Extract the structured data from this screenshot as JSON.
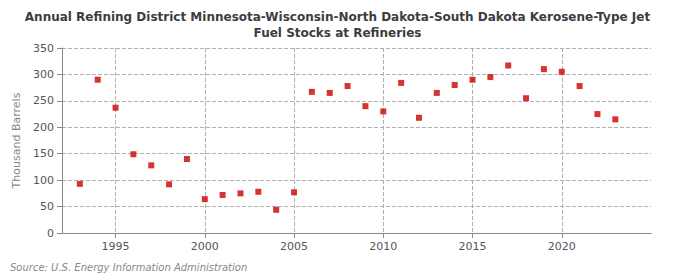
{
  "chart_data": {
    "type": "scatter",
    "title": "Annual Refining District Minnesota-Wisconsin-North Dakota-South Dakota Kerosene-Type Jet\nFuel Stocks at Refineries",
    "ylabel": "Thousand Barrels",
    "source": "Source: U.S. Energy Information Administration",
    "x": [
      1993,
      1994,
      1995,
      1996,
      1997,
      1998,
      1999,
      2000,
      2001,
      2002,
      2003,
      2004,
      2005,
      2006,
      2007,
      2008,
      2009,
      2010,
      2011,
      2012,
      2013,
      2014,
      2015,
      2016,
      2017,
      2018,
      2019,
      2020,
      2021,
      2022,
      2023
    ],
    "values": [
      93,
      290,
      237,
      149,
      128,
      92,
      140,
      64,
      72,
      75,
      78,
      44,
      77,
      267,
      265,
      278,
      240,
      230,
      284,
      218,
      265,
      280,
      290,
      295,
      317,
      255,
      310,
      305,
      278,
      225,
      215
    ],
    "color": "#cc0000",
    "marker": "square",
    "xlim": [
      1992,
      2025
    ],
    "xticks": [
      1995,
      2000,
      2005,
      2010,
      2015,
      2020
    ],
    "ylim": [
      0,
      350
    ],
    "yticks": [
      0,
      50,
      100,
      150,
      200,
      250,
      300,
      350
    ],
    "grid": true
  }
}
